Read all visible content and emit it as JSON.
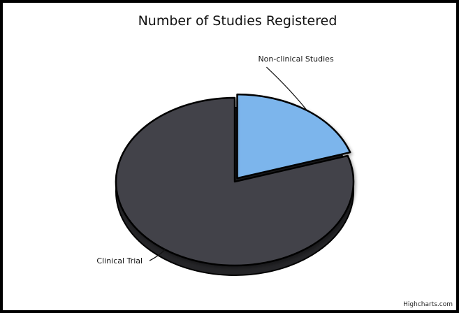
{
  "chart_data": {
    "type": "pie",
    "title": "Number of Studies Registered",
    "series": [
      {
        "data": [
          {
            "name": "Non-clinical Studies",
            "value": 20,
            "color": "#7cb5ec"
          },
          {
            "name": "Clinical Trial",
            "value": 80,
            "color": "#434348"
          }
        ]
      }
    ],
    "start_angle": 0,
    "depth_3d": true,
    "legend": "none",
    "credits": "Highcharts.com"
  }
}
